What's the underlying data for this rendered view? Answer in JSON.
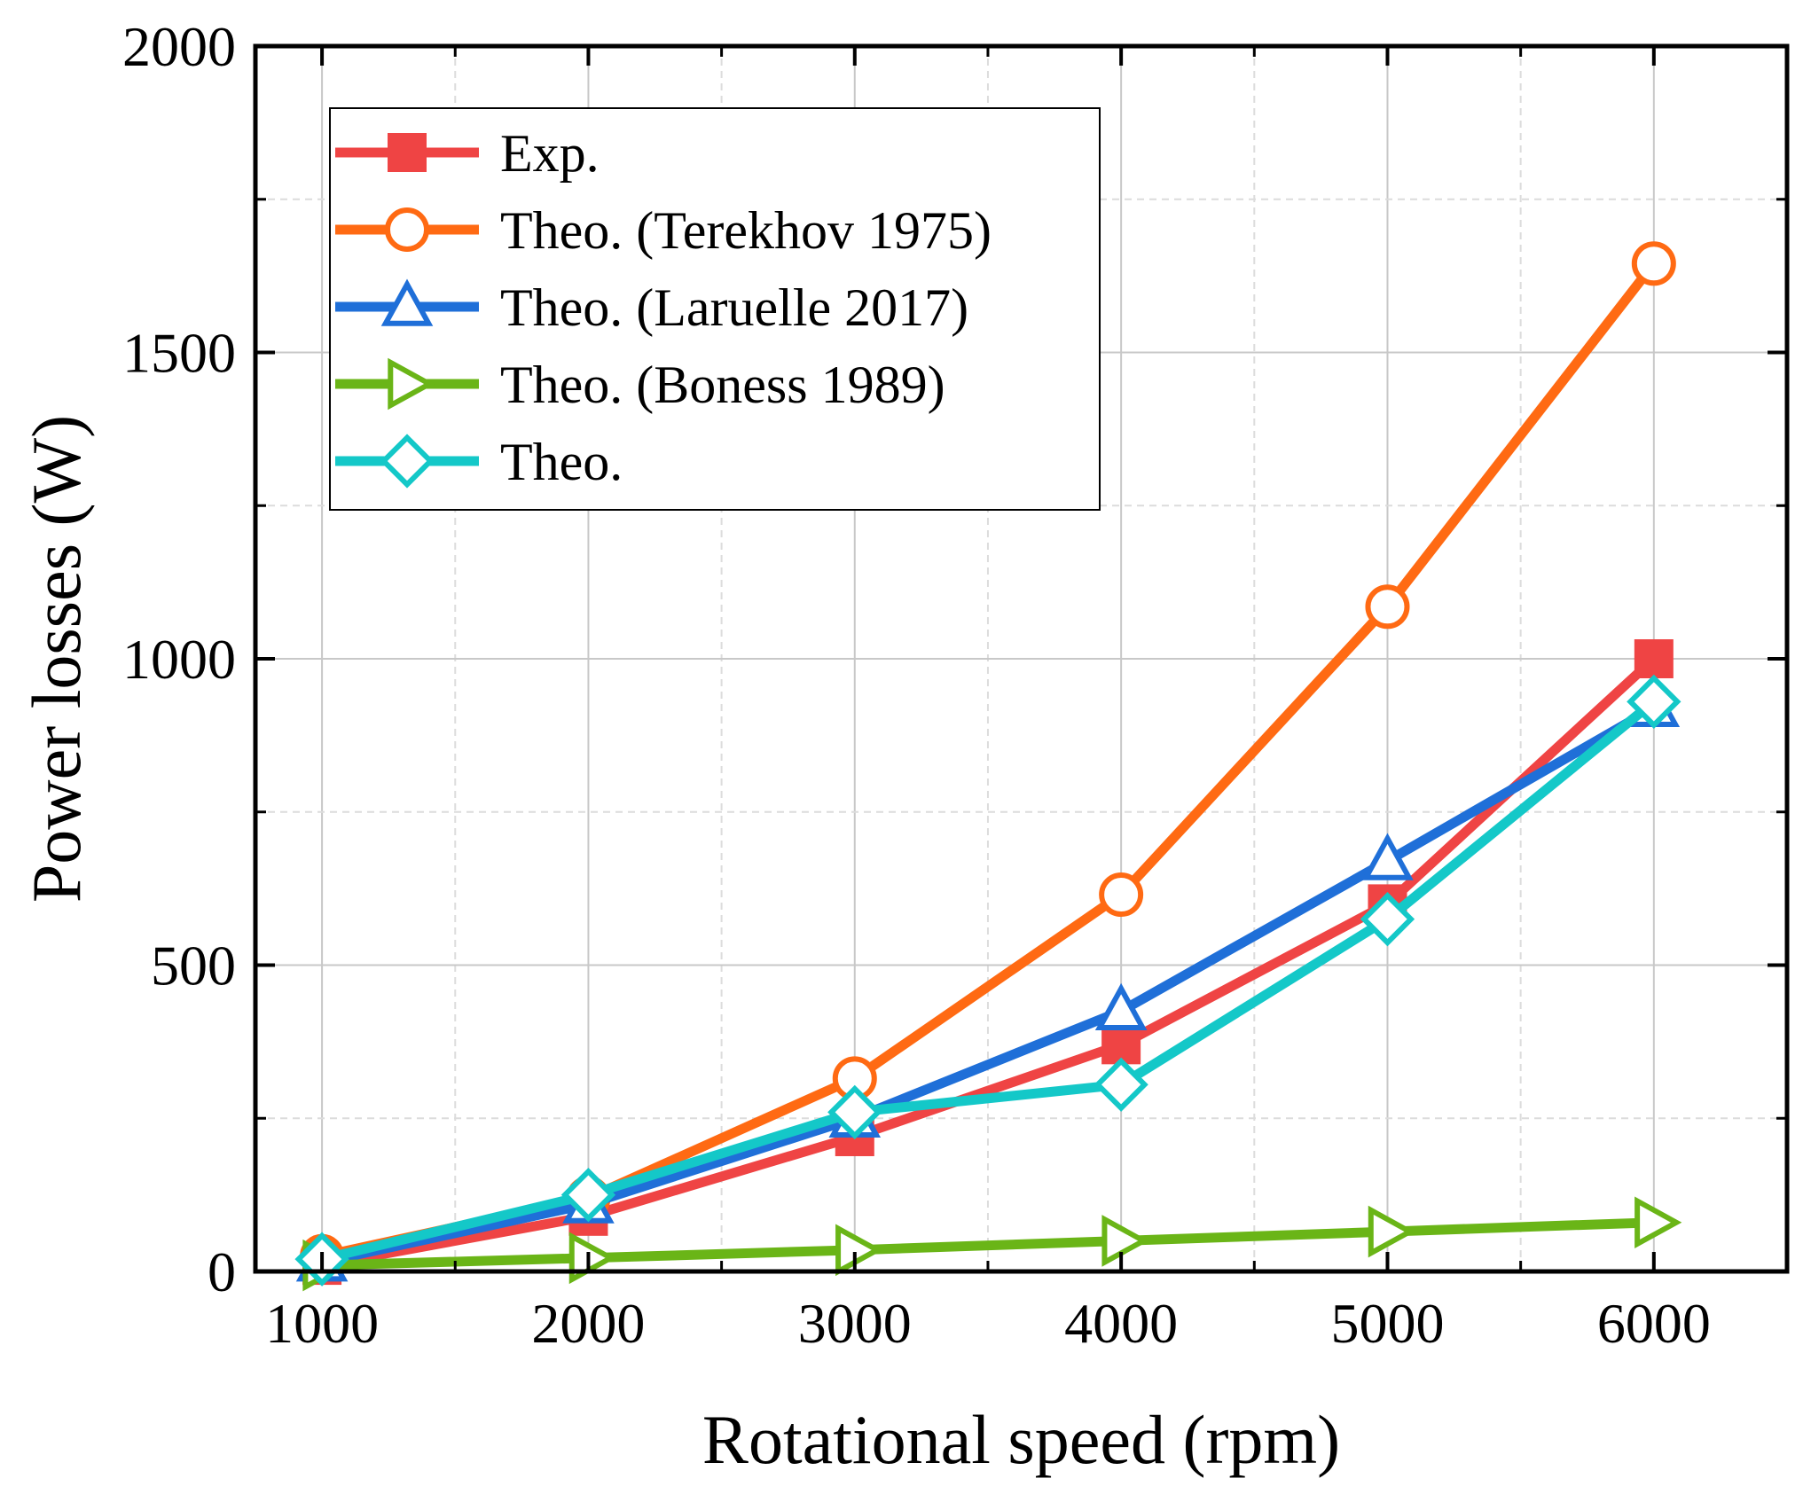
{
  "chart_data": {
    "type": "line",
    "title": "",
    "xlabel": "Rotational speed (rpm)",
    "ylabel": "Power losses (W)",
    "xlim": [
      750,
      6500
    ],
    "ylim": [
      0,
      2000
    ],
    "xticks": [
      1000,
      2000,
      3000,
      4000,
      5000,
      6000
    ],
    "xtick_labels": [
      "1000",
      "2000",
      "3000",
      "4000",
      "5000",
      "6000"
    ],
    "yticks": [
      0,
      500,
      1000,
      1500,
      2000
    ],
    "ytick_labels": [
      "0",
      "500",
      "1000",
      "1500",
      "2000"
    ],
    "grid": true,
    "legend_position": "top-left",
    "series": [
      {
        "name": "Exp.",
        "color": "#ef4444",
        "marker": "square-filled",
        "x": [
          1000,
          2000,
          3000,
          4000,
          5000,
          6000
        ],
        "y": [
          10,
          90,
          220,
          370,
          600,
          1000
        ]
      },
      {
        "name": "Theo. (Terekhov 1975)",
        "color": "#ff6a13",
        "marker": "circle-open",
        "x": [
          1000,
          2000,
          3000,
          4000,
          5000,
          6000
        ],
        "y": [
          25,
          120,
          315,
          615,
          1085,
          1645
        ]
      },
      {
        "name": "Theo. (Laruelle 2017)",
        "color": "#1f6fd8",
        "marker": "triangle-up-open",
        "x": [
          1000,
          2000,
          3000,
          4000,
          5000,
          6000
        ],
        "y": [
          15,
          110,
          250,
          425,
          670,
          920
        ]
      },
      {
        "name": "Theo. (Boness 1989)",
        "color": "#6ab517",
        "marker": "triangle-right-open",
        "x": [
          1000,
          2000,
          3000,
          4000,
          5000,
          6000
        ],
        "y": [
          10,
          22,
          35,
          50,
          65,
          80
        ]
      },
      {
        "name": "Theo.",
        "color": "#14c8c8",
        "marker": "diamond-open",
        "x": [
          1000,
          2000,
          3000,
          4000,
          5000,
          6000
        ],
        "y": [
          20,
          125,
          260,
          305,
          575,
          930
        ]
      }
    ]
  }
}
